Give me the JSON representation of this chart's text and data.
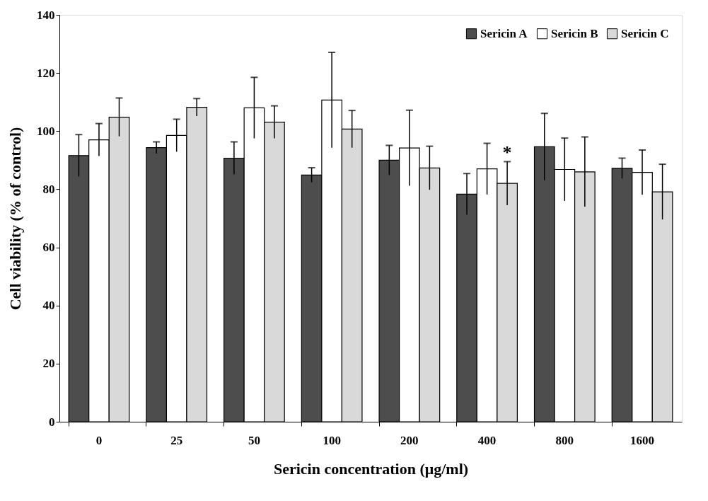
{
  "chart_data": {
    "type": "bar",
    "xlabel": "Sericin concentration (μg/ml)",
    "ylabel": "Cell viability (% of control)",
    "categories": [
      "0",
      "25",
      "50",
      "100",
      "200",
      "400",
      "800",
      "1600"
    ],
    "series": [
      {
        "name": "Sericin A",
        "color": "#4d4d4d",
        "values": [
          91.6,
          94.3,
          90.7,
          84.9,
          90.0,
          78.3,
          94.6,
          87.2
        ],
        "errors": [
          7.2,
          2.0,
          5.6,
          2.5,
          5.1,
          7.1,
          11.5,
          3.5
        ]
      },
      {
        "name": "Sericin B",
        "color": "#ffffff",
        "values": [
          97.0,
          98.5,
          108.0,
          110.7,
          94.2,
          87.0,
          86.8,
          85.8
        ],
        "errors": [
          5.6,
          5.6,
          10.5,
          16.4,
          13.0,
          8.8,
          10.8,
          7.7
        ]
      },
      {
        "name": "Sericin C",
        "color": "#d9d9d9",
        "values": [
          104.8,
          108.2,
          103.1,
          100.7,
          87.3,
          82.0,
          86.0,
          79.1
        ],
        "errors": [
          6.6,
          3.0,
          5.6,
          6.4,
          7.5,
          7.5,
          12.0,
          9.5
        ]
      }
    ],
    "ylim": [
      0,
      140
    ],
    "yticks": [
      0,
      20,
      40,
      60,
      80,
      100,
      120,
      140
    ],
    "annotations": [
      {
        "text": "*",
        "x": "400",
        "y": 94
      }
    ],
    "legend": "top right",
    "grid": false
  }
}
